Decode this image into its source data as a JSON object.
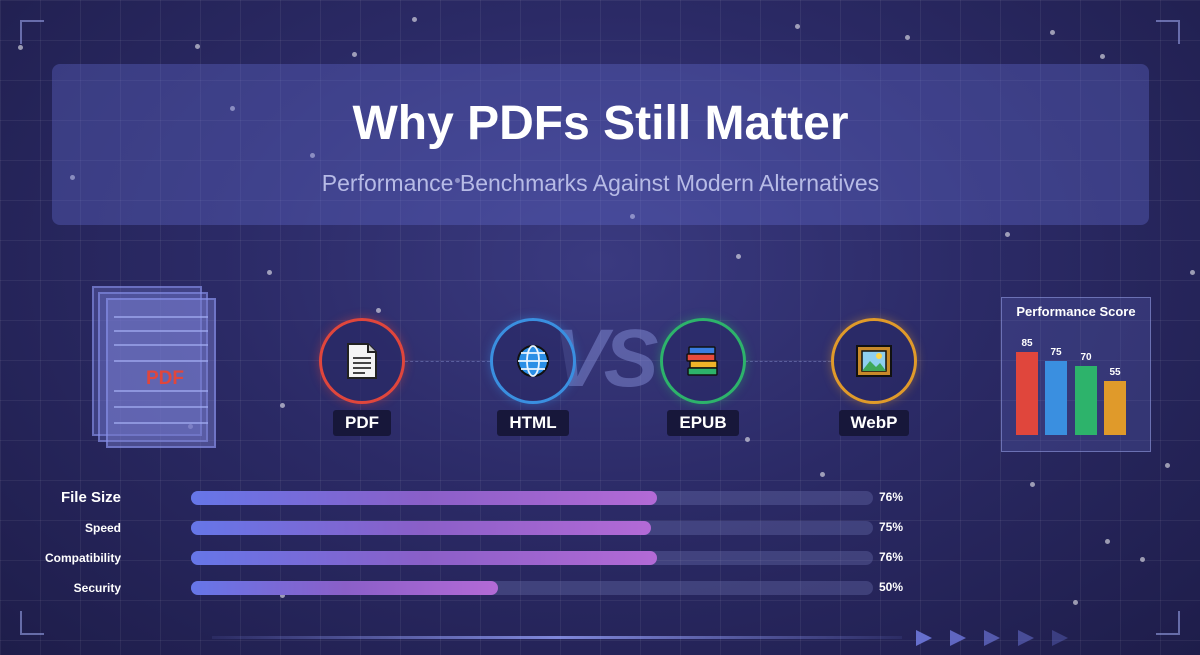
{
  "header": {
    "title": "Why PDFs Still Matter",
    "subtitle": "Performance Benchmarks Against Modern Alternatives"
  },
  "illustration": {
    "pdf_stack_label": "PDF",
    "vs_text": "VS"
  },
  "formats": [
    {
      "label": "PDF",
      "icon": "document-icon",
      "ring_color": "#e0463c"
    },
    {
      "label": "HTML",
      "icon": "globe-icon",
      "ring_color": "#3a8fe0"
    },
    {
      "label": "EPUB",
      "icon": "books-icon",
      "ring_color": "#2db36b"
    },
    {
      "label": "WebP",
      "icon": "framed-picture-icon",
      "ring_color": "#e09a2a"
    }
  ],
  "performance_panel": {
    "title": "Performance Score",
    "bars": [
      {
        "value": 85,
        "color": "#e0463c"
      },
      {
        "value": 75,
        "color": "#3a8fe0"
      },
      {
        "value": 70,
        "color": "#2db36b"
      },
      {
        "value": 55,
        "color": "#e09a2a"
      }
    ]
  },
  "metrics": [
    {
      "label": "File Size",
      "percent_label": "76%",
      "value": 76
    },
    {
      "label": "Speed",
      "percent_label": "75%",
      "value": 75
    },
    {
      "label": "Compatibility",
      "percent_label": "76%",
      "value": 76
    },
    {
      "label": "Security",
      "percent_label": "50%",
      "value": 50
    }
  ]
}
